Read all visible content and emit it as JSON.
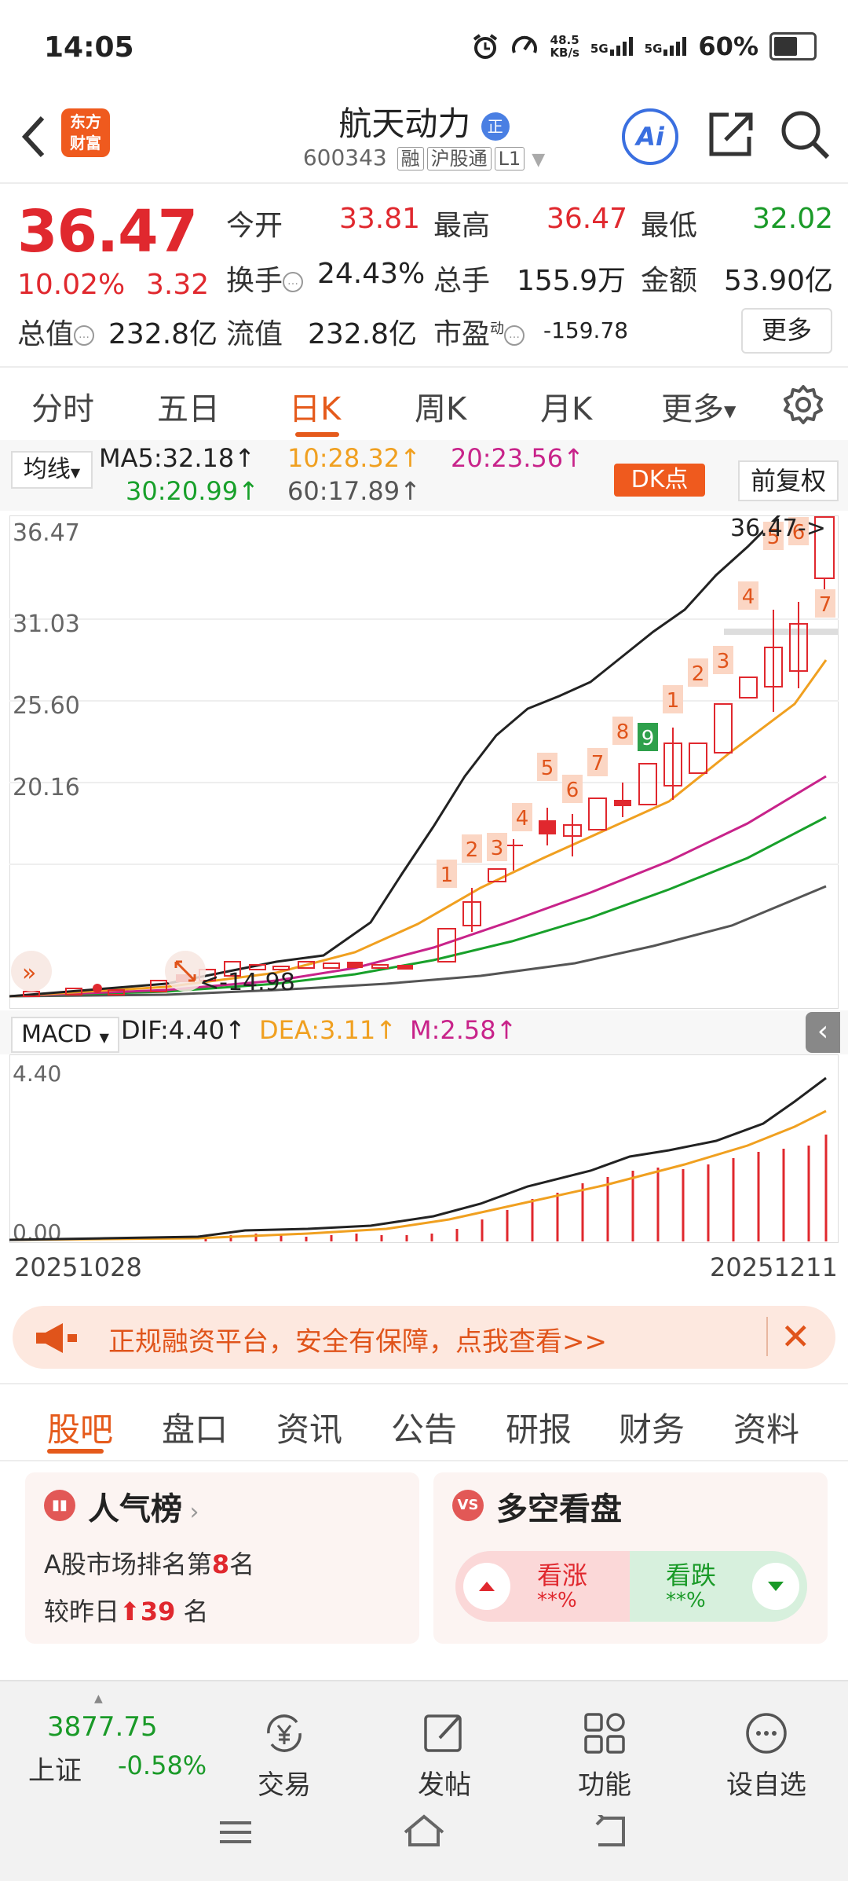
{
  "status_bar": {
    "time": "14:05",
    "net_speed": "48.5",
    "net_unit": "KB/s",
    "sig1": "5G",
    "sig2": "5G",
    "battery": "60%",
    "battery_level": 0.6
  },
  "header": {
    "logo_line1": "东方",
    "logo_line2": "财富",
    "stock_name": "航天动力",
    "name_badge": "正",
    "stock_code": "600343",
    "tag1": "融",
    "tag2": "沪股通",
    "tag3": "L1",
    "ai_label": "Ai"
  },
  "quote": {
    "price": "36.47",
    "change_pct": "10.02%",
    "change": "3.32",
    "open_label": "今开",
    "open": "33.81",
    "high_label": "最高",
    "high": "36.47",
    "low_label": "最低",
    "low": "32.02",
    "turnover_label": "换手",
    "turnover": "24.43%",
    "volume_label": "总手",
    "volume": "155.9万",
    "amount_label": "金额",
    "amount": "53.90亿",
    "mktcap_label": "总值",
    "mktcap": "232.8亿",
    "float_label": "流值",
    "float_cap": "232.8亿",
    "pe_label": "市盈",
    "pe_sup": "动",
    "pe": "-159.78",
    "more": "更多"
  },
  "period_tabs": [
    "分时",
    "五日",
    "日K",
    "周K",
    "月K",
    "更多"
  ],
  "ma_legend": {
    "selector": "均线",
    "ma5": "MA5:32.18↑",
    "ma10": "10:28.32↑",
    "ma20": "20:23.56↑",
    "ma30": "30:20.99↑",
    "ma60": "60:17.89↑",
    "dk": "DK点",
    "fuquan": "前复权",
    "colors": {
      "ma5": "#222222",
      "ma10": "#f0a020",
      "ma20": "#c8238a",
      "ma30": "#18a02a",
      "ma60": "#555555"
    }
  },
  "kchart": {
    "y_labels": [
      "36.47",
      "31.03",
      "25.60",
      "20.16"
    ],
    "last_label": "36.47->",
    "low_label": "<-14.98",
    "badge_numbers": [
      "1",
      "2",
      "3",
      "4",
      "5",
      "6",
      "7",
      "8",
      "9",
      "1",
      "2",
      "3",
      "4",
      "5",
      "6",
      "7"
    ]
  },
  "macd": {
    "selector": "MACD",
    "dif": "DIF:4.40↑",
    "dea": "DEA:3.11↑",
    "m": "M:2.58↑",
    "y_top": "4.40",
    "y_bottom": "0.00",
    "side_arrow": "‹"
  },
  "dates": {
    "start": "20251028",
    "end": "20251211"
  },
  "banner": {
    "text": "正规融资平台，安全有保障，点我查看>>",
    "close": "✕"
  },
  "bottom_tabs": [
    "股吧",
    "盘口",
    "资讯",
    "公告",
    "研报",
    "财务",
    "资料"
  ],
  "card_popularity": {
    "title": "人气榜",
    "line1_prefix": "A股市场排名第",
    "rank": "8",
    "line1_suffix": "名",
    "line2_prefix": "较昨日",
    "delta": "39",
    "line2_suffix": "名"
  },
  "card_bullbear": {
    "title": "多空看盘",
    "up_label": "看涨",
    "up_value": "**%",
    "down_label": "看跌",
    "down_value": "**%"
  },
  "footer": {
    "index_value": "3877.75",
    "index_name": "上证",
    "index_change": "-0.58%",
    "items": [
      "交易",
      "发帖",
      "功能",
      "设自选"
    ]
  }
}
